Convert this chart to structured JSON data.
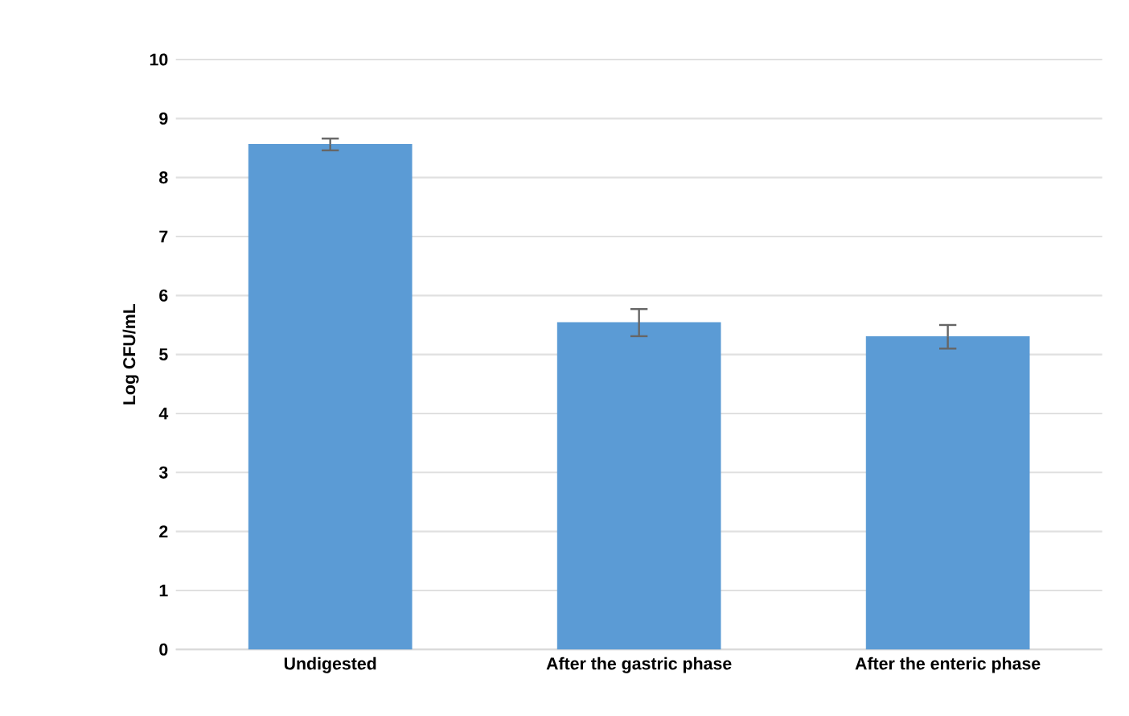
{
  "chart_data": {
    "type": "bar",
    "ylabel": "Log CFU/mL",
    "categories": [
      "Undigested",
      "After the gastric phase",
      "After the enteric phase"
    ],
    "values": [
      8.56,
      5.54,
      5.3
    ],
    "errors": [
      0.1,
      0.23,
      0.2
    ],
    "color": "#5b9bd5",
    "ylim": [
      0,
      10
    ],
    "yticks": [
      0,
      1,
      2,
      3,
      4,
      5,
      6,
      7,
      8,
      9,
      10
    ],
    "grid": "y"
  }
}
